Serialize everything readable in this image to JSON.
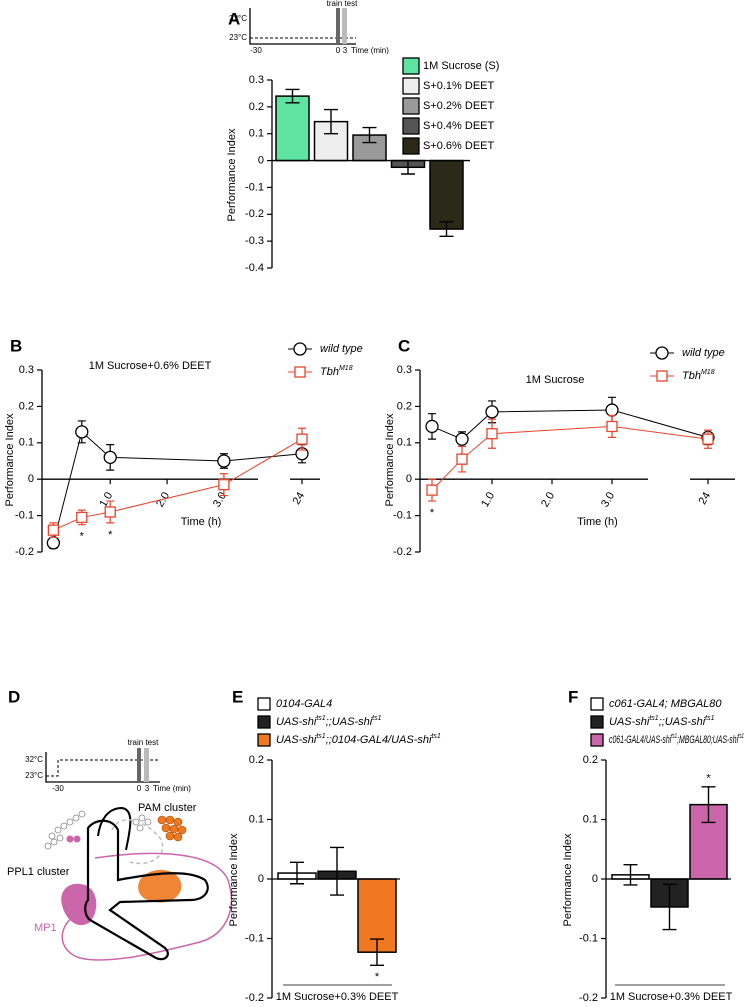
{
  "panel_labels": [
    "A",
    "B",
    "C",
    "D",
    "E",
    "F"
  ],
  "inset_a": {
    "high": "32°C",
    "low": "23°C",
    "protocol": "train test",
    "start": "-30",
    "zero": "0",
    "three": "3",
    "unit": "Time (min)"
  },
  "inset_d": {
    "high": "32°C",
    "low": "23°C",
    "protocol": "train test",
    "start": "-30",
    "zero": "0",
    "three": "3",
    "unit": "Time (min)"
  },
  "diagram_d": {
    "pam": "PAM cluster",
    "ppl1": "PPL1 cluster",
    "mp1": "MP1"
  },
  "chart_data": [
    {
      "type": "bar",
      "ylabel": "Performance Index",
      "series": [
        {
          "name": "1M Sucrose (S)",
          "color": "#5fe3a1",
          "values": [
            0.24
          ],
          "errors": [
            0.025
          ]
        },
        {
          "name": "S+0.1% DEET",
          "color": "#eeeeee",
          "values": [
            0.145
          ],
          "errors": [
            0.045
          ]
        },
        {
          "name": "S+0.2% DEET",
          "color": "#9a9a9a",
          "values": [
            0.095
          ],
          "errors": [
            0.028
          ]
        },
        {
          "name": "S+0.4% DEET",
          "color": "#555555",
          "values": [
            -0.025
          ],
          "errors": [
            0.025
          ]
        },
        {
          "name": "S+0.6% DEET",
          "color": "#2b2a18",
          "values": [
            -0.255
          ],
          "errors": [
            0.027
          ]
        }
      ],
      "ylim": [
        -0.4,
        0.3
      ],
      "yticks": [
        -0.4,
        -0.3,
        -0.2,
        -0.1,
        0,
        0.1,
        0.2,
        0.3
      ]
    },
    {
      "type": "line",
      "title": "1M Sucrose+0.6% DEET",
      "xlabel": "Time (h)",
      "ylabel": "Performance Index",
      "x": [
        0,
        0.5,
        1,
        3,
        24
      ],
      "series": [
        {
          "name": "wild type",
          "color": "#000000",
          "marker": "circle",
          "values": [
            -0.175,
            0.13,
            0.06,
            0.05,
            0.07
          ],
          "errors": [
            0.015,
            0.03,
            0.035,
            0.02,
            0.025
          ]
        },
        {
          "name": "TbhM18",
          "color": "#e8432d",
          "marker": "square",
          "values": [
            -0.14,
            -0.105,
            -0.09,
            -0.015,
            0.11
          ],
          "errors": [
            0.02,
            0.02,
            0.03,
            0.03,
            0.03
          ]
        }
      ],
      "annotations": [
        null,
        "*",
        "*",
        null,
        null
      ],
      "xlim": [
        -0.2,
        24.3
      ],
      "xbreak": [
        3.6,
        23.8
      ],
      "xticks": [
        {
          "value": 1,
          "label": "1.0"
        },
        {
          "value": 2,
          "label": "2.0"
        },
        {
          "value": 3,
          "label": "3.0"
        },
        24
      ],
      "ylim": [
        -0.2,
        0.3
      ],
      "yticks": [
        -0.2,
        -0.1,
        0,
        0.1,
        0.2,
        0.3
      ]
    },
    {
      "type": "line",
      "title": "1M Sucrose",
      "xlabel": "Time (h)",
      "ylabel": "Performance Index",
      "x": [
        0,
        0.5,
        1,
        3,
        24
      ],
      "series": [
        {
          "name": "wild type",
          "color": "#000000",
          "marker": "circle",
          "values": [
            0.145,
            0.11,
            0.185,
            0.19,
            0.115
          ],
          "errors": [
            0.035,
            0.02,
            0.03,
            0.035,
            0.02
          ]
        },
        {
          "name": "TbhM18",
          "color": "#e8432d",
          "marker": "square",
          "values": [
            -0.03,
            0.055,
            0.125,
            0.145,
            0.11
          ],
          "errors": [
            0.03,
            0.035,
            0.04,
            0.03,
            0.025
          ]
        }
      ],
      "annotations": [
        "*",
        null,
        null,
        null,
        null
      ],
      "xlim": [
        -0.2,
        24.3
      ],
      "xbreak": [
        3.6,
        23.8
      ],
      "xticks": [
        {
          "value": 1,
          "label": "1.0"
        },
        {
          "value": 2,
          "label": "2.0"
        },
        {
          "value": 3,
          "label": "3.0"
        },
        24
      ],
      "ylim": [
        -0.2,
        0.3
      ],
      "yticks": [
        -0.2,
        -0.1,
        0,
        0.1,
        0.2,
        0.3
      ]
    },
    {
      "type": "bar",
      "xlabel": "1M Sucrose+0.3% DEET",
      "ylabel": "Performance Index",
      "series": [
        {
          "name": "0104-GAL4",
          "color": "#ffffff",
          "values": [
            0.01
          ],
          "errors": [
            0.018
          ]
        },
        {
          "name": "UAS-shits1;;UAS-shits1",
          "color": "#222222",
          "values": [
            0.013
          ],
          "errors": [
            0.04
          ]
        },
        {
          "name": "UAS-shits1;;0104-GAL4/UAS-shits1",
          "color": "#f07820",
          "values": [
            -0.123
          ],
          "errors": [
            0.022
          ],
          "annotation": "*"
        }
      ],
      "ylim": [
        -0.2,
        0.2
      ],
      "yticks": [
        -0.2,
        -0.1,
        0,
        0.1,
        0.2
      ]
    },
    {
      "type": "bar",
      "xlabel": "1M Sucrose+0.3% DEET",
      "ylabel": "Performance Index",
      "series": [
        {
          "name": "c061-GAL4; MBGAL80",
          "color": "#ffffff",
          "values": [
            0.007
          ],
          "errors": [
            0.017
          ]
        },
        {
          "name": "UAS-shits1;;UAS-shits1",
          "color": "#222222",
          "values": [
            -0.047
          ],
          "errors": [
            0.038
          ]
        },
        {
          "name": "c061-GAL4/UAS-shits1;MBGAL80;UAS-shits1",
          "color": "#cc66aa",
          "values": [
            0.125
          ],
          "errors": [
            0.03
          ],
          "annotation": "*"
        }
      ],
      "ylim": [
        -0.2,
        0.2
      ],
      "yticks": [
        -0.2,
        -0.1,
        0,
        0.1,
        0.2
      ]
    }
  ]
}
